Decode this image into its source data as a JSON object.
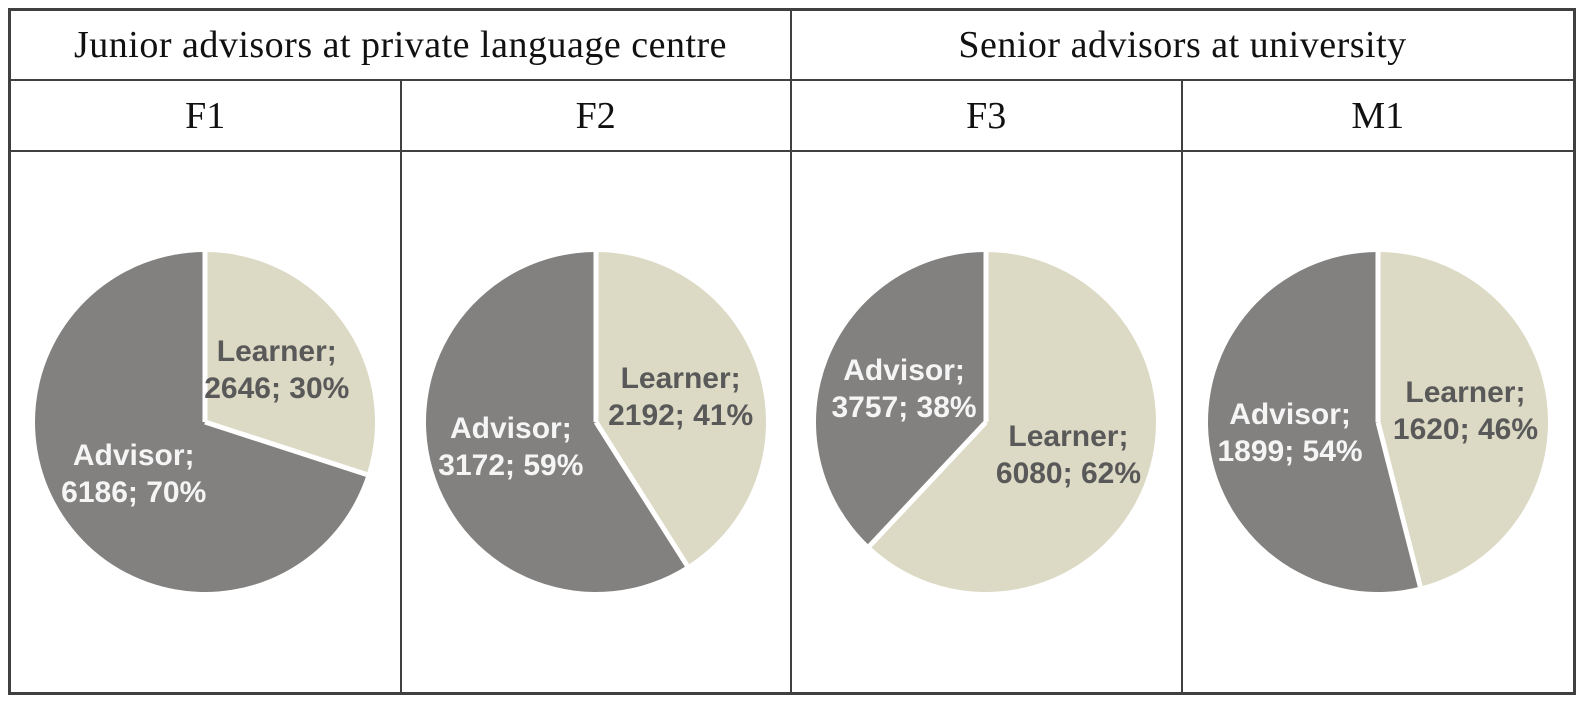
{
  "table": {
    "group_headers": [
      {
        "label": "Junior advisors at private language centre",
        "span": 2
      },
      {
        "label": "Senior advisors at university",
        "span": 2
      }
    ],
    "column_headers": [
      "F1",
      "F2",
      "F3",
      "M1"
    ]
  },
  "colors": {
    "slices": {
      "advisor": "#828180",
      "learner": "#dcd9c4"
    },
    "label_text": {
      "advisor": "#f5f5f5",
      "learner": "#595959"
    },
    "slice_divider": "#ffffff",
    "table_border": "#404040",
    "background": "#ffffff"
  },
  "chart_data": [
    {
      "type": "pie",
      "column": "F1",
      "group": "Junior advisors at private language centre",
      "start_angle_deg": 0,
      "direction": "clockwise",
      "slices": [
        {
          "name": "Learner",
          "value": 2646,
          "pct": 30
        },
        {
          "name": "Advisor",
          "value": 6186,
          "pct": 70
        }
      ]
    },
    {
      "type": "pie",
      "column": "F2",
      "group": "Junior advisors at private language centre",
      "start_angle_deg": 0,
      "direction": "clockwise",
      "slices": [
        {
          "name": "Learner",
          "value": 2192,
          "pct": 41
        },
        {
          "name": "Advisor",
          "value": 3172,
          "pct": 59
        }
      ]
    },
    {
      "type": "pie",
      "column": "F3",
      "group": "Senior advisors at university",
      "start_angle_deg": 0,
      "direction": "clockwise",
      "slices": [
        {
          "name": "Learner",
          "value": 6080,
          "pct": 62
        },
        {
          "name": "Advisor",
          "value": 3757,
          "pct": 38
        }
      ]
    },
    {
      "type": "pie",
      "column": "M1",
      "group": "Senior advisors at university",
      "start_angle_deg": 0,
      "direction": "clockwise",
      "slices": [
        {
          "name": "Learner",
          "value": 1620,
          "pct": 46
        },
        {
          "name": "Advisor",
          "value": 1899,
          "pct": 54
        }
      ]
    }
  ],
  "label_format": "{name}; {value}; {pct}%"
}
